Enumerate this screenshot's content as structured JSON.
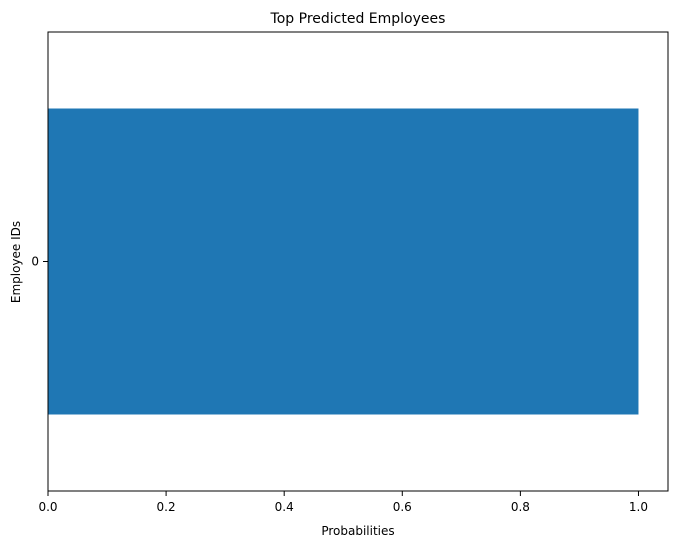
{
  "chart_data": {
    "type": "bar",
    "orientation": "horizontal",
    "title": "Top Predicted Employees",
    "xlabel": "Probabilities",
    "ylabel": "Employee IDs",
    "categories": [
      "0"
    ],
    "values": [
      1.0
    ],
    "xlim": [
      0,
      1.05
    ],
    "xticks": [
      "0.0",
      "0.2",
      "0.4",
      "0.6",
      "0.8",
      "1.0"
    ],
    "grid": false,
    "bar_color": "#1f77b4"
  }
}
